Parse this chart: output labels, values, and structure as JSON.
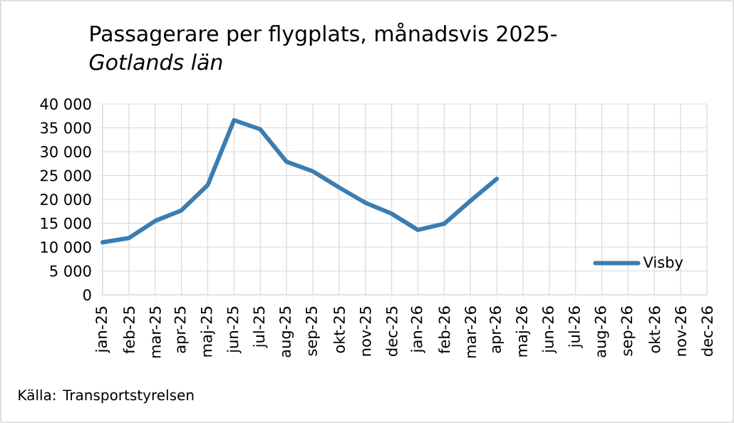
{
  "chart_data": {
    "type": "line",
    "title": "Passagerare per flygplats, månadsvis 2025-",
    "subtitle": "Gotlands län",
    "categories": [
      "jan-25",
      "feb-25",
      "mar-25",
      "apr-25",
      "maj-25",
      "jun-25",
      "jul-25",
      "aug-25",
      "sep-25",
      "okt-25",
      "nov-25",
      "dec-25",
      "jan-26",
      "feb-26",
      "mar-26",
      "apr-26",
      "maj-26",
      "jun-26",
      "jul-26",
      "aug-26",
      "sep-26",
      "okt-26",
      "nov-26",
      "dec-26"
    ],
    "series": [
      {
        "name": "Visby",
        "color": "#3b7db1",
        "values": [
          11000,
          11900,
          15500,
          17700,
          23000,
          36600,
          34700,
          27900,
          25900,
          22500,
          19300,
          17000,
          13600,
          14900,
          19700,
          24300,
          null,
          null,
          null,
          null,
          null,
          null,
          null,
          null
        ]
      }
    ],
    "ylim": [
      0,
      40000
    ],
    "yticks": [
      0,
      {
        "value": 5000,
        "label": "5 000"
      },
      {
        "value": 10000,
        "label": "10 000"
      },
      {
        "value": 15000,
        "label": "15 000"
      },
      {
        "value": 20000,
        "label": "20 000"
      },
      {
        "value": 25000,
        "label": "25 000"
      },
      {
        "value": 30000,
        "label": "30 000"
      },
      {
        "value": 35000,
        "label": "35 000"
      },
      {
        "value": 40000,
        "label": "40 000"
      }
    ],
    "grid": true,
    "legend": "bottom right",
    "marker": "none",
    "line_style": "solid",
    "annotations": [
      "Källa: Transportstyrelsen"
    ]
  }
}
